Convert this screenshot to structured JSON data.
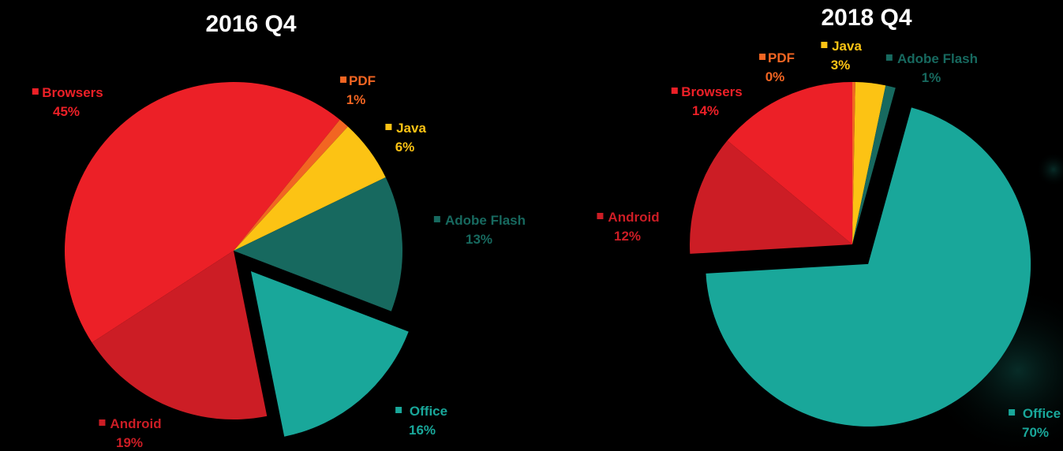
{
  "chart_data": [
    {
      "type": "pie",
      "title": "2016 Q4",
      "slices": [
        {
          "label": "Browsers",
          "value": 45,
          "value_label": "45%",
          "color": "#ec2027"
        },
        {
          "label": "PDF",
          "value": 1,
          "value_label": "1%",
          "color": "#f26522"
        },
        {
          "label": "Java",
          "value": 6,
          "value_label": "6%",
          "color": "#fcc314"
        },
        {
          "label": "Adobe Flash",
          "value": 13,
          "value_label": "13%",
          "color": "#17695f"
        },
        {
          "label": "Office",
          "value": 16,
          "value_label": "16%",
          "color": "#19a79a",
          "exploded": true
        },
        {
          "label": "Android",
          "value": 19,
          "value_label": "19%",
          "color": "#cc1d25"
        }
      ]
    },
    {
      "type": "pie",
      "title": "2018 Q4",
      "slices": [
        {
          "label": "PDF",
          "value": 0.3,
          "value_label": "0%",
          "color": "#f26522"
        },
        {
          "label": "Java",
          "value": 3,
          "value_label": "3%",
          "color": "#fcc314"
        },
        {
          "label": "Adobe Flash",
          "value": 1,
          "value_label": "1%",
          "color": "#17695f"
        },
        {
          "label": "Office",
          "value": 70,
          "value_label": "70%",
          "color": "#19a79a",
          "exploded": true
        },
        {
          "label": "Android",
          "value": 12,
          "value_label": "12%",
          "color": "#cc1d25"
        },
        {
          "label": "Browsers",
          "value": 14,
          "value_label": "14%",
          "color": "#ec2027"
        }
      ]
    }
  ]
}
